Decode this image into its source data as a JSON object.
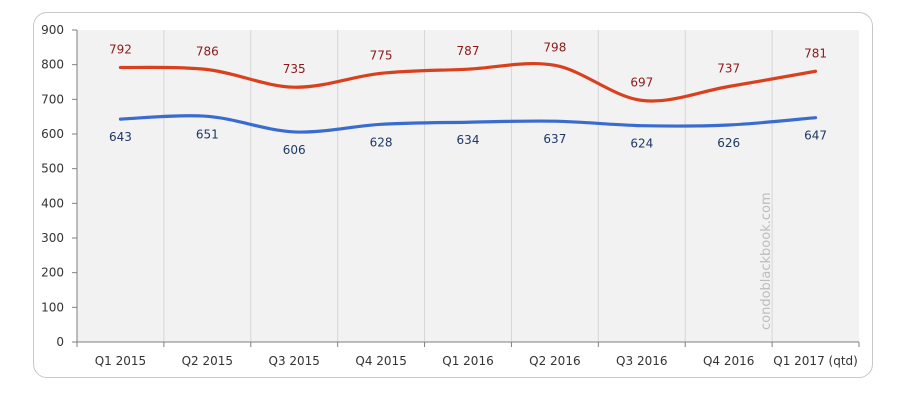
{
  "chart_data": {
    "type": "line",
    "categories": [
      "Q1 2015",
      "Q2 2015",
      "Q3 2015",
      "Q4 2015",
      "Q1 2016",
      "Q2 2016",
      "Q3 2016",
      "Q4 2016",
      "Q1 2017 (qtd)"
    ],
    "series": [
      {
        "name": "",
        "color": "#d9411e",
        "label_color": "#8b1a1a",
        "values": [
          792,
          786,
          735,
          775,
          787,
          798,
          697,
          737,
          781
        ]
      },
      {
        "name": "",
        "color": "#3a6ccf",
        "label_color": "#1f3864",
        "values": [
          643,
          651,
          606,
          628,
          634,
          637,
          624,
          626,
          647
        ]
      }
    ],
    "yticks": [
      "0",
      "100",
      "200",
      "300",
      "400",
      "500",
      "600",
      "700",
      "800",
      "900"
    ],
    "ylim": [
      0,
      900
    ],
    "grid": "vertical",
    "plot_background": "#f2f2f2",
    "watermark": "condoblackbook.com",
    "title": "",
    "xlabel": "",
    "ylabel": ""
  }
}
